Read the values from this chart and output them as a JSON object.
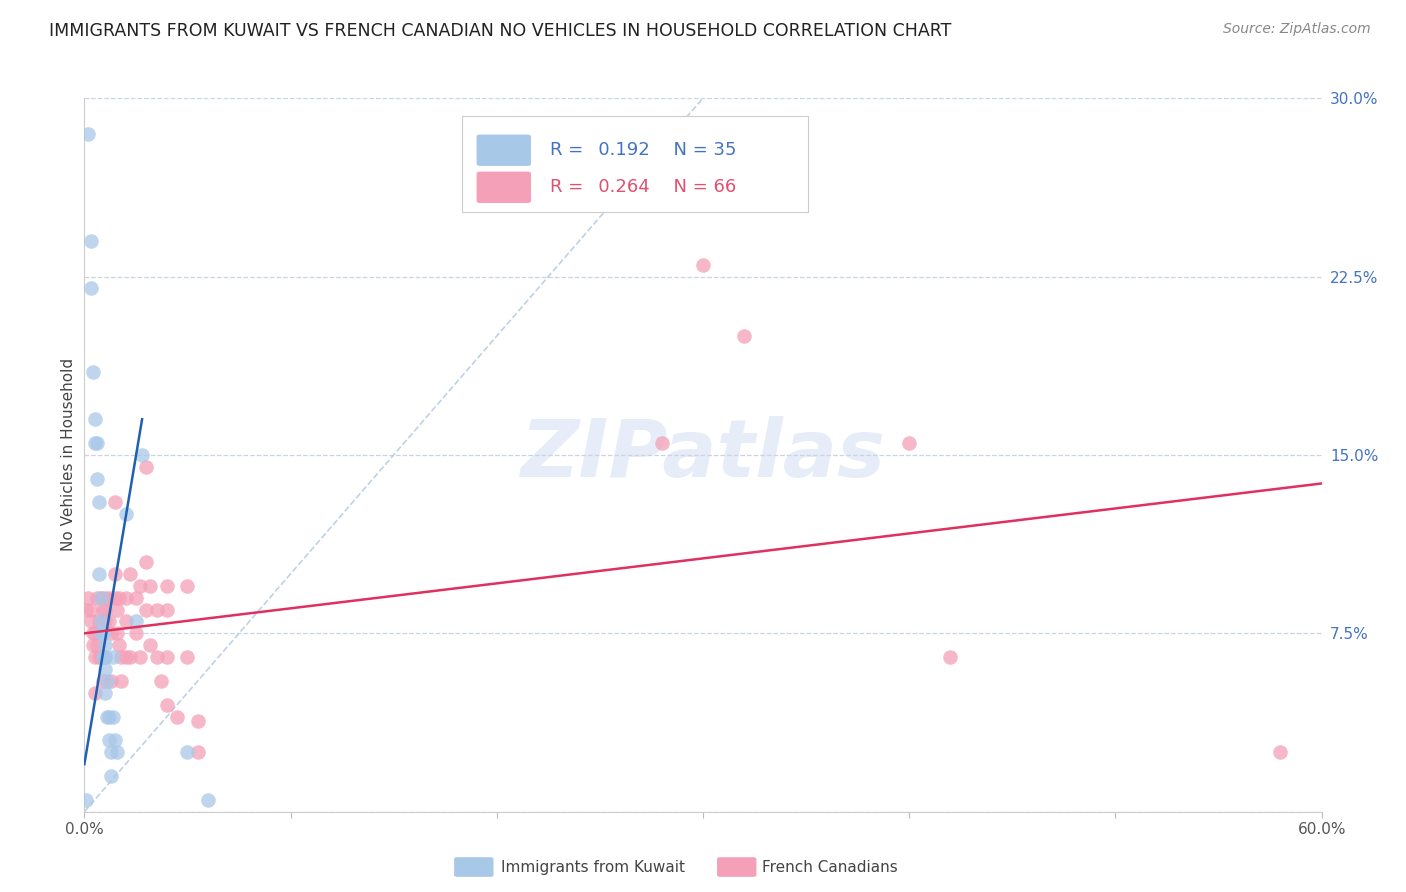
{
  "title": "IMMIGRANTS FROM KUWAIT VS FRENCH CANADIAN NO VEHICLES IN HOUSEHOLD CORRELATION CHART",
  "source": "Source: ZipAtlas.com",
  "ylabel": "No Vehicles in Household",
  "watermark": "ZIPatlas",
  "xlim": [
    0.0,
    0.6
  ],
  "ylim": [
    0.0,
    0.3
  ],
  "yticks_right": [
    0.0,
    0.075,
    0.15,
    0.225,
    0.3
  ],
  "ytick_labels_right": [
    "",
    "7.5%",
    "15.0%",
    "22.5%",
    "30.0%"
  ],
  "kuwait_R": "0.192",
  "kuwait_N": "35",
  "french_R": "0.264",
  "french_N": "66",
  "kuwait_color": "#a8c8e8",
  "kuwait_line_color": "#2060b0",
  "french_color": "#f4a0b8",
  "french_line_color": "#e03060",
  "dashed_line_color": "#b8cce0",
  "kuwait_scatter_x": [
    0.002,
    0.003,
    0.003,
    0.004,
    0.005,
    0.005,
    0.006,
    0.006,
    0.007,
    0.007,
    0.008,
    0.008,
    0.008,
    0.009,
    0.009,
    0.01,
    0.01,
    0.01,
    0.01,
    0.011,
    0.011,
    0.012,
    0.012,
    0.013,
    0.013,
    0.014,
    0.014,
    0.015,
    0.016,
    0.02,
    0.025,
    0.028,
    0.05,
    0.06,
    0.001
  ],
  "kuwait_scatter_y": [
    0.285,
    0.24,
    0.22,
    0.185,
    0.165,
    0.155,
    0.155,
    0.14,
    0.13,
    0.1,
    0.09,
    0.08,
    0.075,
    0.075,
    0.065,
    0.07,
    0.065,
    0.06,
    0.05,
    0.055,
    0.04,
    0.04,
    0.03,
    0.025,
    0.015,
    0.065,
    0.04,
    0.03,
    0.025,
    0.125,
    0.08,
    0.15,
    0.025,
    0.005,
    0.005
  ],
  "french_scatter_x": [
    0.001,
    0.002,
    0.003,
    0.003,
    0.004,
    0.004,
    0.005,
    0.005,
    0.005,
    0.006,
    0.006,
    0.007,
    0.007,
    0.008,
    0.008,
    0.009,
    0.009,
    0.01,
    0.01,
    0.01,
    0.01,
    0.012,
    0.012,
    0.013,
    0.013,
    0.015,
    0.015,
    0.015,
    0.016,
    0.016,
    0.017,
    0.017,
    0.018,
    0.018,
    0.02,
    0.02,
    0.02,
    0.022,
    0.022,
    0.025,
    0.025,
    0.027,
    0.027,
    0.03,
    0.03,
    0.03,
    0.032,
    0.032,
    0.035,
    0.035,
    0.037,
    0.04,
    0.04,
    0.04,
    0.04,
    0.045,
    0.05,
    0.05,
    0.055,
    0.055,
    0.28,
    0.3,
    0.32,
    0.4,
    0.42,
    0.58
  ],
  "french_scatter_y": [
    0.085,
    0.09,
    0.085,
    0.08,
    0.075,
    0.07,
    0.075,
    0.065,
    0.05,
    0.09,
    0.07,
    0.08,
    0.065,
    0.09,
    0.065,
    0.085,
    0.055,
    0.09,
    0.085,
    0.08,
    0.065,
    0.09,
    0.08,
    0.075,
    0.055,
    0.13,
    0.1,
    0.09,
    0.085,
    0.075,
    0.09,
    0.07,
    0.065,
    0.055,
    0.09,
    0.08,
    0.065,
    0.1,
    0.065,
    0.09,
    0.075,
    0.095,
    0.065,
    0.145,
    0.105,
    0.085,
    0.095,
    0.07,
    0.085,
    0.065,
    0.055,
    0.095,
    0.085,
    0.065,
    0.045,
    0.04,
    0.095,
    0.065,
    0.038,
    0.025,
    0.155,
    0.23,
    0.2,
    0.155,
    0.065,
    0.025
  ],
  "kuwait_trend_x": [
    0.0,
    0.028
  ],
  "kuwait_trend_y": [
    0.02,
    0.165
  ],
  "french_trend_x": [
    0.0,
    0.6
  ],
  "french_trend_y": [
    0.075,
    0.138
  ],
  "background_color": "#ffffff",
  "grid_color": "#c8d4e4",
  "title_fontsize": 12.5,
  "axis_label_fontsize": 11,
  "tick_fontsize": 11,
  "legend_fontsize": 13,
  "source_fontsize": 10
}
